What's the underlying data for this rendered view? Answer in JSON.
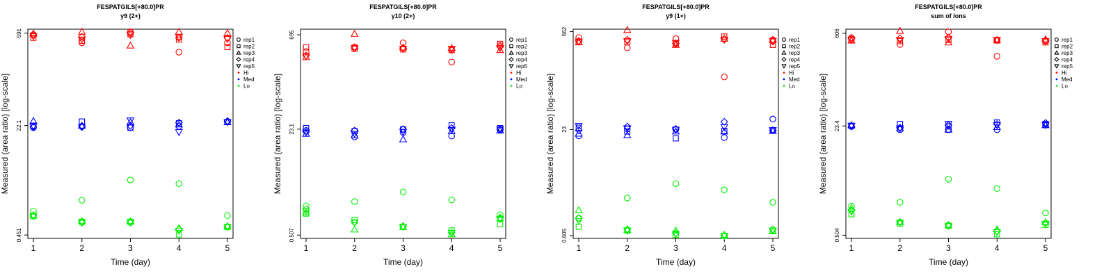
{
  "colors": {
    "Hi": "#ff0000",
    "Med": "#0000ff",
    "Lo": "#00ee00"
  },
  "legend": {
    "shapes": [
      {
        "label": "rep1",
        "shape": "circle"
      },
      {
        "label": "rep2",
        "shape": "square"
      },
      {
        "label": "rep3",
        "shape": "triangle-up"
      },
      {
        "label": "rep4",
        "shape": "diamond"
      },
      {
        "label": "rep5",
        "shape": "triangle-down"
      }
    ],
    "colors": [
      {
        "label": "Hi",
        "color": "#ff0000"
      },
      {
        "label": "Med",
        "color": "#0000ff"
      },
      {
        "label": "Lo",
        "color": "#00ee00"
      }
    ]
  },
  "chart_data": [
    {
      "type": "scatter",
      "title": "FESPATGILS[+80.0]PR",
      "subtitle": "y9 (2+)",
      "xlabel": "Time (day)",
      "ylabel": "Measured (area ratio) [log-scale]",
      "x_ticks": [
        "1",
        "2",
        "3",
        "4",
        "5"
      ],
      "y_ticks": [
        "0.451",
        "22.1",
        "591"
      ],
      "y_log": true,
      "ylim": [
        0.4,
        680
      ],
      "series": [
        {
          "level": "Hi",
          "rep": 1,
          "values": [
            560,
            420,
            620,
            300,
            420
          ]
        },
        {
          "level": "Hi",
          "rep": 2,
          "values": [
            500,
            450,
            570,
            470,
            360
          ]
        },
        {
          "level": "Hi",
          "rep": 3,
          "values": [
            580,
            620,
            380,
            620,
            590
          ]
        },
        {
          "level": "Hi",
          "rep": 4,
          "values": [
            540,
            520,
            600,
            500,
            500
          ]
        },
        {
          "level": "Hi",
          "rep": 5,
          "values": [
            530,
            470,
            550,
            510,
            480
          ]
        },
        {
          "level": "Med",
          "rep": 1,
          "values": [
            20.5,
            21.5,
            20.5,
            21.5,
            25
          ]
        },
        {
          "level": "Med",
          "rep": 2,
          "values": [
            22,
            25.5,
            20.5,
            24,
            25
          ]
        },
        {
          "level": "Med",
          "rep": 3,
          "values": [
            26,
            22,
            25,
            23,
            25
          ]
        },
        {
          "level": "Med",
          "rep": 4,
          "values": [
            21,
            21,
            22,
            24.5,
            26
          ]
        },
        {
          "level": "Med",
          "rep": 5,
          "values": [
            21.5,
            21,
            26.5,
            17.5,
            25
          ]
        },
        {
          "level": "Lo",
          "rep": 1,
          "values": [
            1.05,
            1.55,
            3.2,
            2.8,
            0.9
          ]
        },
        {
          "level": "Lo",
          "rep": 2,
          "values": [
            0.88,
            0.72,
            0.72,
            0.46,
            0.6
          ]
        },
        {
          "level": "Lo",
          "rep": 3,
          "values": [
            0.92,
            0.75,
            0.74,
            0.58,
            0.62
          ]
        },
        {
          "level": "Lo",
          "rep": 4,
          "values": [
            0.9,
            0.7,
            0.7,
            0.55,
            0.6
          ]
        },
        {
          "level": "Lo",
          "rep": 5,
          "values": [
            0.88,
            0.7,
            0.7,
            0.52,
            0.6
          ]
        }
      ]
    },
    {
      "type": "scatter",
      "title": "FESPATGILS[+80.0]PR",
      "subtitle": "y10 (2+)",
      "xlabel": "Time (day)",
      "ylabel": "Measured (area ratio) [log-scale]",
      "x_ticks": [
        "1",
        "2",
        "3",
        "4",
        "5"
      ],
      "y_ticks": [
        "0.507",
        "23.1",
        "695"
      ],
      "y_log": true,
      "ylim": [
        0.45,
        850
      ],
      "series": [
        {
          "level": "Hi",
          "rep": 1,
          "values": [
            380,
            450,
            520,
            260,
            470
          ]
        },
        {
          "level": "Hi",
          "rep": 2,
          "values": [
            440,
            420,
            410,
            400,
            500
          ]
        },
        {
          "level": "Hi",
          "rep": 3,
          "values": [
            310,
            720,
            440,
            430,
            400
          ]
        },
        {
          "level": "Hi",
          "rep": 4,
          "values": [
            330,
            430,
            430,
            400,
            450
          ]
        },
        {
          "level": "Hi",
          "rep": 5,
          "values": [
            320,
            430,
            420,
            420,
            430
          ]
        },
        {
          "level": "Med",
          "rep": 1,
          "values": [
            22,
            17.5,
            20.5,
            18,
            22.5
          ]
        },
        {
          "level": "Med",
          "rep": 2,
          "values": [
            24,
            21.5,
            23,
            26.5,
            24
          ]
        },
        {
          "level": "Med",
          "rep": 3,
          "values": [
            19.5,
            18.5,
            16,
            21.5,
            22
          ]
        },
        {
          "level": "Med",
          "rep": 4,
          "values": [
            21,
            22,
            23,
            24,
            23
          ]
        },
        {
          "level": "Med",
          "rep": 5,
          "values": [
            20.5,
            19.5,
            21,
            22.5,
            23
          ]
        },
        {
          "level": "Lo",
          "rep": 1,
          "values": [
            1.45,
            1.7,
            2.4,
            1.8,
            1.05
          ]
        },
        {
          "level": "Lo",
          "rep": 2,
          "values": [
            1.1,
            0.88,
            0.68,
            0.6,
            0.75
          ]
        },
        {
          "level": "Lo",
          "rep": 3,
          "values": [
            1.15,
            0.62,
            0.68,
            0.52,
            0.93
          ]
        },
        {
          "level": "Lo",
          "rep": 4,
          "values": [
            1.3,
            0.8,
            0.7,
            0.55,
            0.95
          ]
        },
        {
          "level": "Lo",
          "rep": 5,
          "values": [
            1.2,
            0.8,
            0.68,
            0.55,
            0.9
          ]
        }
      ]
    },
    {
      "type": "scatter",
      "title": "FESPATGILS[+80.0]PR",
      "subtitle": "y9 (1+)",
      "xlabel": "Time (day)",
      "ylabel": "Measured (area ratio) [log-scale]",
      "x_ticks": [
        "1",
        "2",
        "3",
        "4",
        "5"
      ],
      "y_ticks": [
        "0.605",
        "23",
        "662"
      ],
      "y_log": true,
      "ylim": [
        0.55,
        720
      ],
      "series": [
        {
          "level": "Hi",
          "rep": 1,
          "values": [
            540,
            380,
            520,
            140,
            500
          ]
        },
        {
          "level": "Hi",
          "rep": 2,
          "values": [
            470,
            460,
            430,
            560,
            420
          ]
        },
        {
          "level": "Hi",
          "rep": 3,
          "values": [
            460,
            700,
            420,
            520,
            500
          ]
        },
        {
          "level": "Hi",
          "rep": 4,
          "values": [
            480,
            500,
            440,
            520,
            470
          ]
        },
        {
          "level": "Hi",
          "rep": 5,
          "values": [
            470,
            480,
            450,
            500,
            480
          ]
        },
        {
          "level": "Med",
          "rep": 1,
          "values": [
            18.5,
            23.5,
            23,
            17.5,
            33
          ]
        },
        {
          "level": "Med",
          "rep": 2,
          "values": [
            24.5,
            21.5,
            17,
            22,
            22.5
          ]
        },
        {
          "level": "Med",
          "rep": 3,
          "values": [
            20,
            19,
            21.5,
            21.5,
            22
          ]
        },
        {
          "level": "Med",
          "rep": 4,
          "values": [
            22.5,
            25.5,
            23.5,
            30,
            22.5
          ]
        },
        {
          "level": "Med",
          "rep": 5,
          "values": [
            26,
            24,
            23,
            25,
            22.5
          ]
        },
        {
          "level": "Lo",
          "rep": 1,
          "values": [
            1.1,
            2.2,
            3.6,
            2.9,
            1.9
          ]
        },
        {
          "level": "Lo",
          "rep": 2,
          "values": [
            0.82,
            0.72,
            0.62,
            0.6,
            0.72
          ]
        },
        {
          "level": "Lo",
          "rep": 3,
          "values": [
            1.45,
            0.74,
            0.72,
            0.62,
            0.7
          ]
        },
        {
          "level": "Lo",
          "rep": 4,
          "values": [
            1.1,
            0.75,
            0.66,
            0.6,
            0.75
          ]
        },
        {
          "level": "Lo",
          "rep": 5,
          "values": [
            1.0,
            0.72,
            0.64,
            0.6,
            0.72
          ]
        }
      ]
    },
    {
      "type": "scatter",
      "title": "FESPATGILS[+80.0]PR",
      "subtitle": "sum of Ions",
      "xlabel": "Time (day)",
      "ylabel": "Measured (area ratio) [log-scale]",
      "x_ticks": [
        "1",
        "2",
        "3",
        "4",
        "5"
      ],
      "y_ticks": [
        "0.504",
        "23.4",
        "606"
      ],
      "y_log": true,
      "ylim": [
        0.45,
        700
      ],
      "series": [
        {
          "level": "Hi",
          "rep": 1,
          "values": [
            520,
            410,
            640,
            270,
            460
          ]
        },
        {
          "level": "Hi",
          "rep": 2,
          "values": [
            490,
            460,
            480,
            470,
            440
          ]
        },
        {
          "level": "Hi",
          "rep": 3,
          "values": [
            470,
            660,
            440,
            480,
            490
          ]
        },
        {
          "level": "Hi",
          "rep": 4,
          "values": [
            500,
            510,
            520,
            480,
            470
          ]
        },
        {
          "level": "Hi",
          "rep": 5,
          "values": [
            480,
            480,
            500,
            480,
            460
          ]
        },
        {
          "level": "Med",
          "rep": 1,
          "values": [
            23,
            20.5,
            20.5,
            20.5,
            24
          ]
        },
        {
          "level": "Med",
          "rep": 2,
          "values": [
            23.5,
            25,
            23,
            26.5,
            25
          ]
        },
        {
          "level": "Med",
          "rep": 3,
          "values": [
            24,
            21.5,
            20.5,
            22.5,
            24
          ]
        },
        {
          "level": "Med",
          "rep": 4,
          "values": [
            23,
            22,
            24,
            25,
            26
          ]
        },
        {
          "level": "Med",
          "rep": 5,
          "values": [
            23.5,
            21.5,
            25,
            24,
            24.5
          ]
        },
        {
          "level": "Lo",
          "rep": 1,
          "values": [
            1.4,
            1.6,
            3.6,
            2.6,
            1.1
          ]
        },
        {
          "level": "Lo",
          "rep": 2,
          "values": [
            1.05,
            0.76,
            0.7,
            0.52,
            0.72
          ]
        },
        {
          "level": "Lo",
          "rep": 3,
          "values": [
            1.3,
            0.8,
            0.72,
            0.62,
            0.8
          ]
        },
        {
          "level": "Lo",
          "rep": 4,
          "values": [
            1.2,
            0.8,
            0.72,
            0.58,
            0.78
          ]
        },
        {
          "level": "Lo",
          "rep": 5,
          "values": [
            1.15,
            0.78,
            0.7,
            0.56,
            0.75
          ]
        }
      ]
    }
  ]
}
